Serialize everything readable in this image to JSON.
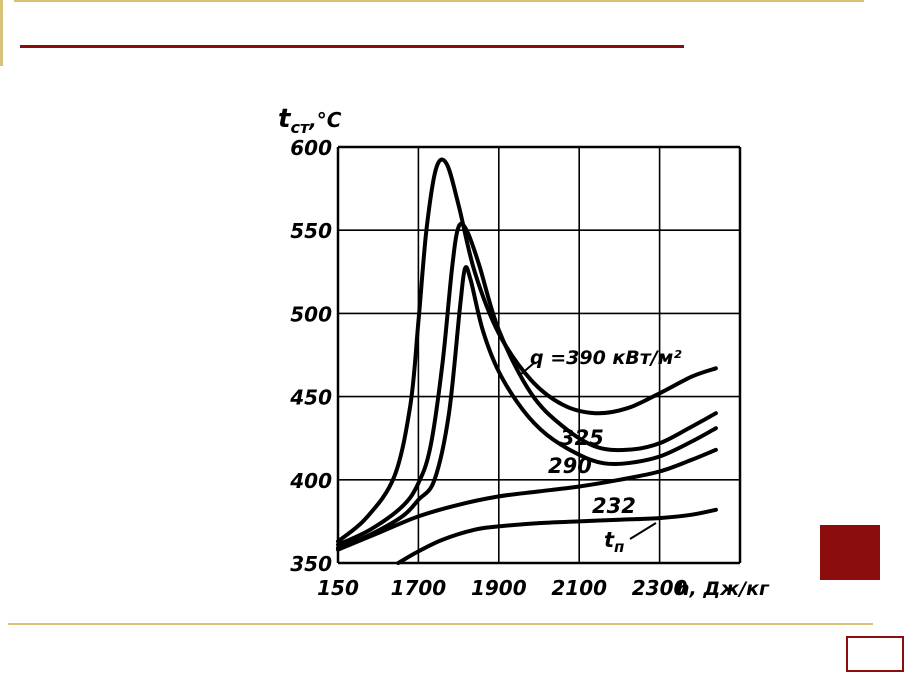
{
  "colors": {
    "accent": "#8b0d0d",
    "rule": "#d8c27a",
    "ink": "#000000"
  },
  "chart_data": {
    "type": "line",
    "ylabel_main": "t",
    "ylabel_sub": "ст",
    "ylabel_unit": ",°C",
    "xlabel": "h, Дж/кг",
    "x_ticks": [
      "150",
      "1700",
      "1900",
      "2100",
      "2300"
    ],
    "y_ticks": [
      "350",
      "400",
      "450",
      "500",
      "550",
      "600"
    ],
    "ylim": [
      350,
      600
    ],
    "grid": true,
    "annotation": "q =390 кВт/м²",
    "series": [
      {
        "name": "390",
        "label": "",
        "points": [
          [
            0.0,
            363
          ],
          [
            0.35,
            377
          ],
          [
            0.7,
            402
          ],
          [
            0.9,
            445
          ],
          [
            1.0,
            495
          ],
          [
            1.1,
            550
          ],
          [
            1.22,
            587
          ],
          [
            1.35,
            590
          ],
          [
            1.5,
            565
          ],
          [
            1.7,
            525
          ],
          [
            2.0,
            488
          ],
          [
            2.4,
            460
          ],
          [
            2.8,
            445
          ],
          [
            3.2,
            440
          ],
          [
            3.6,
            443
          ],
          [
            4.0,
            452
          ],
          [
            4.4,
            462
          ],
          [
            4.7,
            467
          ]
        ]
      },
      {
        "name": "325",
        "label": "325",
        "points": [
          [
            0.0,
            361
          ],
          [
            0.4,
            370
          ],
          [
            0.8,
            384
          ],
          [
            1.0,
            398
          ],
          [
            1.15,
            420
          ],
          [
            1.3,
            470
          ],
          [
            1.42,
            528
          ],
          [
            1.5,
            552
          ],
          [
            1.6,
            550
          ],
          [
            1.75,
            530
          ],
          [
            2.0,
            490
          ],
          [
            2.4,
            452
          ],
          [
            2.8,
            432
          ],
          [
            3.2,
            420
          ],
          [
            3.6,
            418
          ],
          [
            4.0,
            422
          ],
          [
            4.4,
            432
          ],
          [
            4.7,
            440
          ]
        ]
      },
      {
        "name": "290",
        "label": "290",
        "points": [
          [
            0.0,
            359
          ],
          [
            0.4,
            367
          ],
          [
            0.8,
            378
          ],
          [
            1.0,
            388
          ],
          [
            1.2,
            400
          ],
          [
            1.38,
            440
          ],
          [
            1.52,
            505
          ],
          [
            1.58,
            527
          ],
          [
            1.65,
            520
          ],
          [
            1.8,
            490
          ],
          [
            2.0,
            465
          ],
          [
            2.3,
            442
          ],
          [
            2.6,
            427
          ],
          [
            3.0,
            415
          ],
          [
            3.3,
            410
          ],
          [
            3.6,
            410
          ],
          [
            4.0,
            414
          ],
          [
            4.4,
            423
          ],
          [
            4.7,
            431
          ]
        ]
      },
      {
        "name": "232",
        "label": "232",
        "points": [
          [
            0.0,
            358
          ],
          [
            0.5,
            368
          ],
          [
            1.0,
            378
          ],
          [
            1.5,
            385
          ],
          [
            2.0,
            390
          ],
          [
            2.5,
            393
          ],
          [
            3.0,
            396
          ],
          [
            3.5,
            400
          ],
          [
            4.0,
            405
          ],
          [
            4.4,
            412
          ],
          [
            4.7,
            418
          ]
        ]
      },
      {
        "name": "tn",
        "label": "t",
        "label_sub": "п",
        "points": [
          [
            0.75,
            350
          ],
          [
            1.0,
            357
          ],
          [
            1.3,
            364
          ],
          [
            1.7,
            370
          ],
          [
            2.0,
            372
          ],
          [
            2.5,
            374
          ],
          [
            3.0,
            375
          ],
          [
            3.5,
            376
          ],
          [
            4.0,
            377
          ],
          [
            4.4,
            379
          ],
          [
            4.7,
            382
          ]
        ]
      }
    ]
  }
}
